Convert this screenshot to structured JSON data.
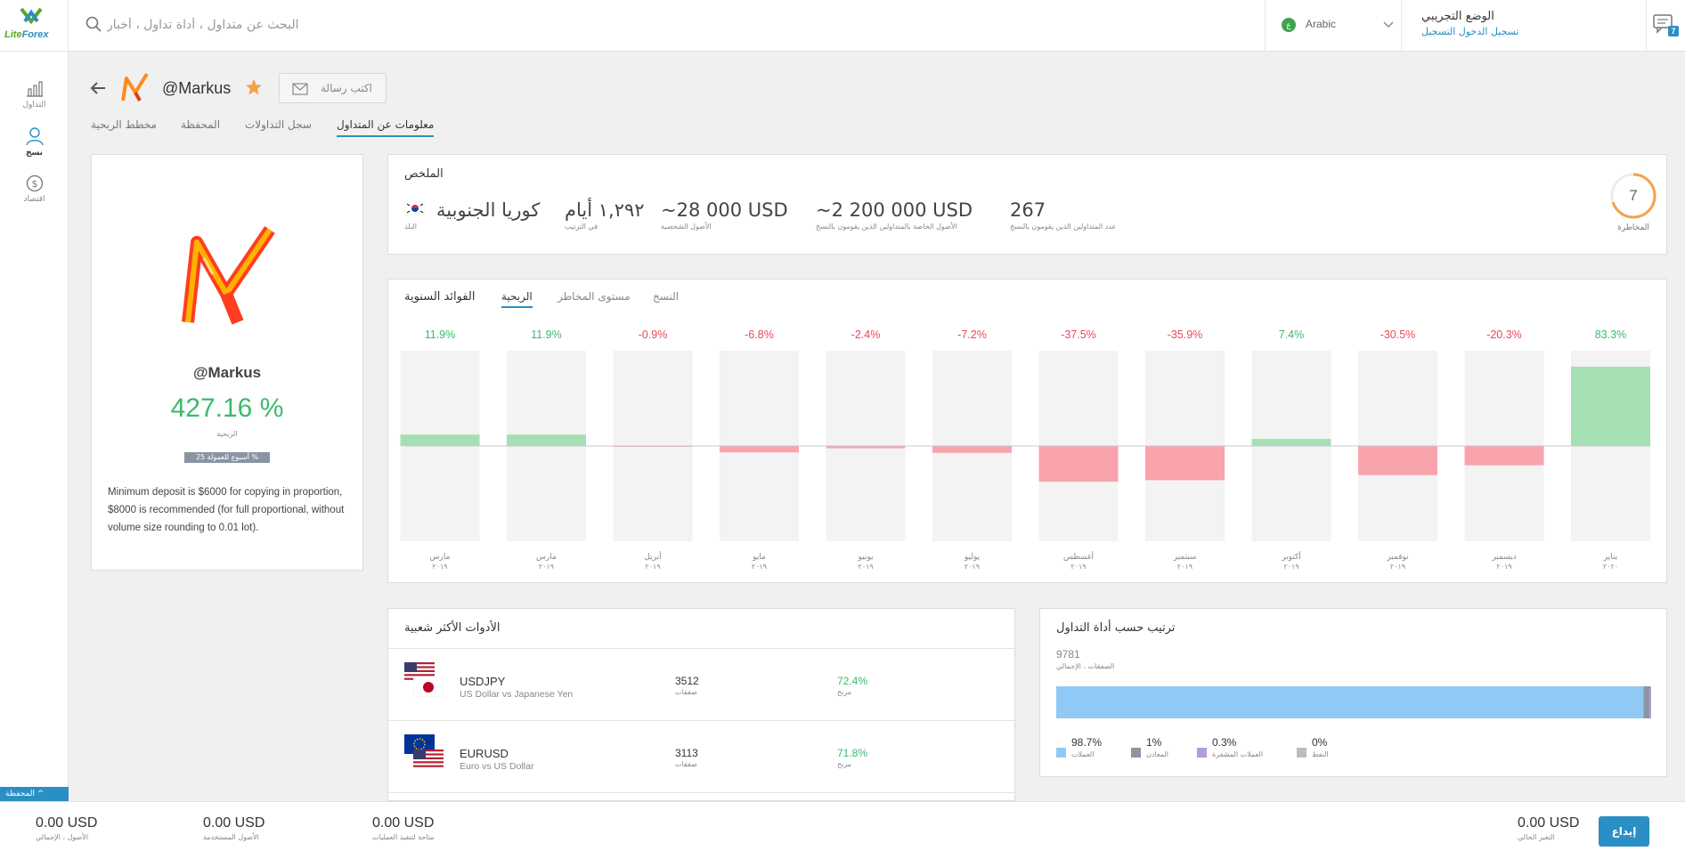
{
  "topbar": {
    "logo_text_a": "Lite",
    "logo_text_b": "Forex",
    "search_placeholder": "البحث عن متداول ، أداة تداول ، أخبار",
    "language": "Arabic",
    "mode_title": "الوضع التجريبي",
    "mode_link": "تسجيل الدخول التسجيل",
    "notifications_count": "7"
  },
  "leftnav": {
    "items": [
      {
        "label": "التداول",
        "icon": "bar-chart-icon"
      },
      {
        "label": "نسخ",
        "icon": "user-copy-icon"
      },
      {
        "label": "اقتصاد",
        "icon": "dollar-icon"
      }
    ],
    "portfolio_tab": "المحفظة ^"
  },
  "header": {
    "trader_handle": "@Markus",
    "message_button": "اكتب رسالة"
  },
  "tabs": [
    {
      "label": "معلومات عن المتداول",
      "active": true
    },
    {
      "label": "سجل التداولات",
      "active": false
    },
    {
      "label": "المحفظة",
      "active": false
    },
    {
      "label": "مخطط الربحية",
      "active": false
    }
  ],
  "profile": {
    "name": "@Markus",
    "profitability": "427.16 %",
    "profitability_label": "الربحية",
    "badge": "25 أسبوع للعمولة %",
    "description": "Minimum deposit is $6000 for copying in proportion, $8000 is recommended (for full proportional, without volume size rounding to 0.01 lot)."
  },
  "summary": {
    "title": "الملخص",
    "risk_value": "7",
    "risk_fraction": 0.7,
    "risk_label": "المخاطرة",
    "stats": [
      {
        "value": "267",
        "label": "عدد المتداولين الذين يقومون بالنسخ"
      },
      {
        "value": "~2 200 000 USD",
        "label": "الأصول الخاصة بالمتداولين الذين يقومون بالنسخ"
      },
      {
        "value": "~28 000 USD",
        "label": "الأصول الشخصية"
      },
      {
        "value": "١,٢٩٢ أيام",
        "label": "في الترتيب"
      },
      {
        "value": "كوريا الجنوبية",
        "label": "البلد"
      }
    ]
  },
  "chart_tabs": {
    "heading": "الفوائد السنوية",
    "items": [
      {
        "label": "الربحية",
        "active": true
      },
      {
        "label": "مستوى المخاطر",
        "active": false
      },
      {
        "label": "النسخ",
        "active": false
      }
    ]
  },
  "chart_data": {
    "type": "bar",
    "categories": [
      "مارس ٢٠١٩",
      "مارس ٢٠١٩",
      "أبريل ٢٠١٩",
      "مايو ٢٠١٩",
      "يونيو ٢٠١٩",
      "يوليو ٢٠١٩",
      "أغسطس ٢٠١٩",
      "سبتمبر ٢٠١٩",
      "أكتوبر ٢٠١٩",
      "نوفمبر ٢٠١٩",
      "ديسمبر ٢٠١٩",
      "يناير ٢٠٢٠"
    ],
    "month_labels": [
      "مارس",
      "مارس",
      "أبريل",
      "مايو",
      "يونيو",
      "يوليو",
      "أغسطس",
      "سبتمبر",
      "أكتوبر",
      "نوفمبر",
      "ديسمبر",
      "يناير"
    ],
    "year_labels": [
      "٢٠١٩",
      "٢٠١٩",
      "٢٠١٩",
      "٢٠١٩",
      "٢٠١٩",
      "٢٠١٩",
      "٢٠١٩",
      "٢٠١٩",
      "٢٠١٩",
      "٢٠١٩",
      "٢٠١٩",
      "٢٠٢٠"
    ],
    "values": [
      11.9,
      11.9,
      -0.9,
      -6.8,
      -2.4,
      -7.2,
      -37.5,
      -35.9,
      7.4,
      -30.5,
      -20.3,
      83.3
    ],
    "value_labels": [
      "11.9%",
      "11.9%",
      "-0.9%",
      "-6.8%",
      "-2.4%",
      "-7.2%",
      "-37.5%",
      "-35.9%",
      "7.4%",
      "-30.5%",
      "-20.3%",
      "83.3%"
    ],
    "ylim": [
      -100,
      100
    ],
    "positive_color": "#a5dfb4",
    "negative_color": "#f9a3ad",
    "positive_text": "#3bba6b",
    "negative_text": "#e8495b",
    "background_color": "#f3f3f3"
  },
  "popular": {
    "title": "الأدوات الأكثر شعبية",
    "deals_label": "صفقات",
    "profit_label": "مربح",
    "items": [
      {
        "symbol": "USDJPY",
        "description": "US Dollar vs Japanese Yen",
        "deals": "3512",
        "profit": "72.4%"
      },
      {
        "symbol": "EURUSD",
        "description": "Euro vs US Dollar",
        "deals": "3113",
        "profit": "71.8%"
      }
    ]
  },
  "ranking": {
    "title": "ترتيب حسب أداة التداول",
    "total": "9781",
    "total_label": "الصفقات ، الإجمالي",
    "segments": [
      {
        "pct": "98.7%",
        "value": 98.7,
        "label": "العملات",
        "color": "#90c9f5"
      },
      {
        "pct": "1%",
        "value": 1,
        "label": "المعادن",
        "color": "#8a97a3"
      },
      {
        "pct": "0.3%",
        "value": 0.3,
        "label": "العملات المشفرة",
        "color": "#b39ddb"
      },
      {
        "pct": "0%",
        "value": 0,
        "label": "النفط",
        "color": "#bdbdbd"
      }
    ]
  },
  "bottombar": {
    "stats": [
      {
        "value": "0.00 USD",
        "label": "الأصول ، الإجمالي"
      },
      {
        "value": "0.00 USD",
        "label": "الأصول المستخدمة"
      },
      {
        "value": "0.00 USD",
        "label": "متاحة لتنفيذ العمليات"
      }
    ],
    "current_change_value": "0.00 USD",
    "current_change_label": "التغير الحالي",
    "deposit_button": "إيداع"
  }
}
